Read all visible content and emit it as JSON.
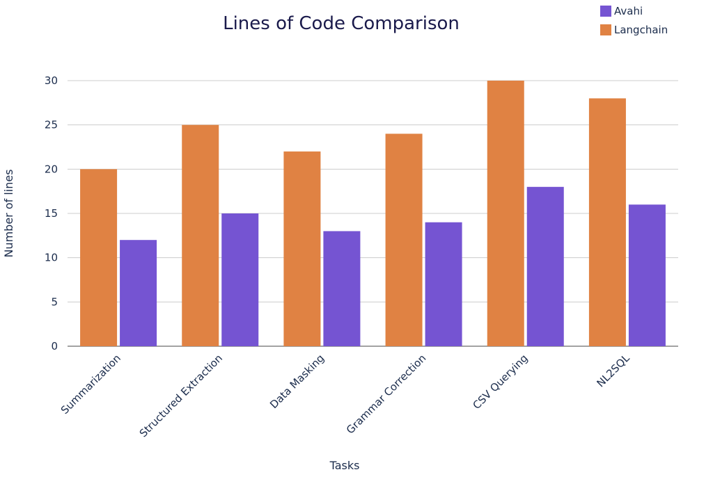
{
  "chart_data": {
    "type": "bar",
    "title": "Lines of Code Comparison",
    "xlabel": "Tasks",
    "ylabel": "Number of lines",
    "categories": [
      "Summarization",
      "Structured Extraction",
      "Data Masking",
      "Grammar Correction",
      "CSV Querying",
      "NL2SQL"
    ],
    "series": [
      {
        "name": "Langchain",
        "color": "#E08243",
        "values": [
          20,
          25,
          22,
          24,
          30,
          28
        ]
      },
      {
        "name": "Avahi",
        "color": "#7554D2",
        "values": [
          12,
          15,
          13,
          14,
          18,
          16
        ]
      }
    ],
    "legend_order": [
      "Avahi",
      "Langchain"
    ],
    "ylim": [
      0,
      30
    ],
    "yticks": [
      0,
      5,
      10,
      15,
      20,
      25,
      30
    ],
    "grid": true,
    "legend_position": "top-right"
  }
}
